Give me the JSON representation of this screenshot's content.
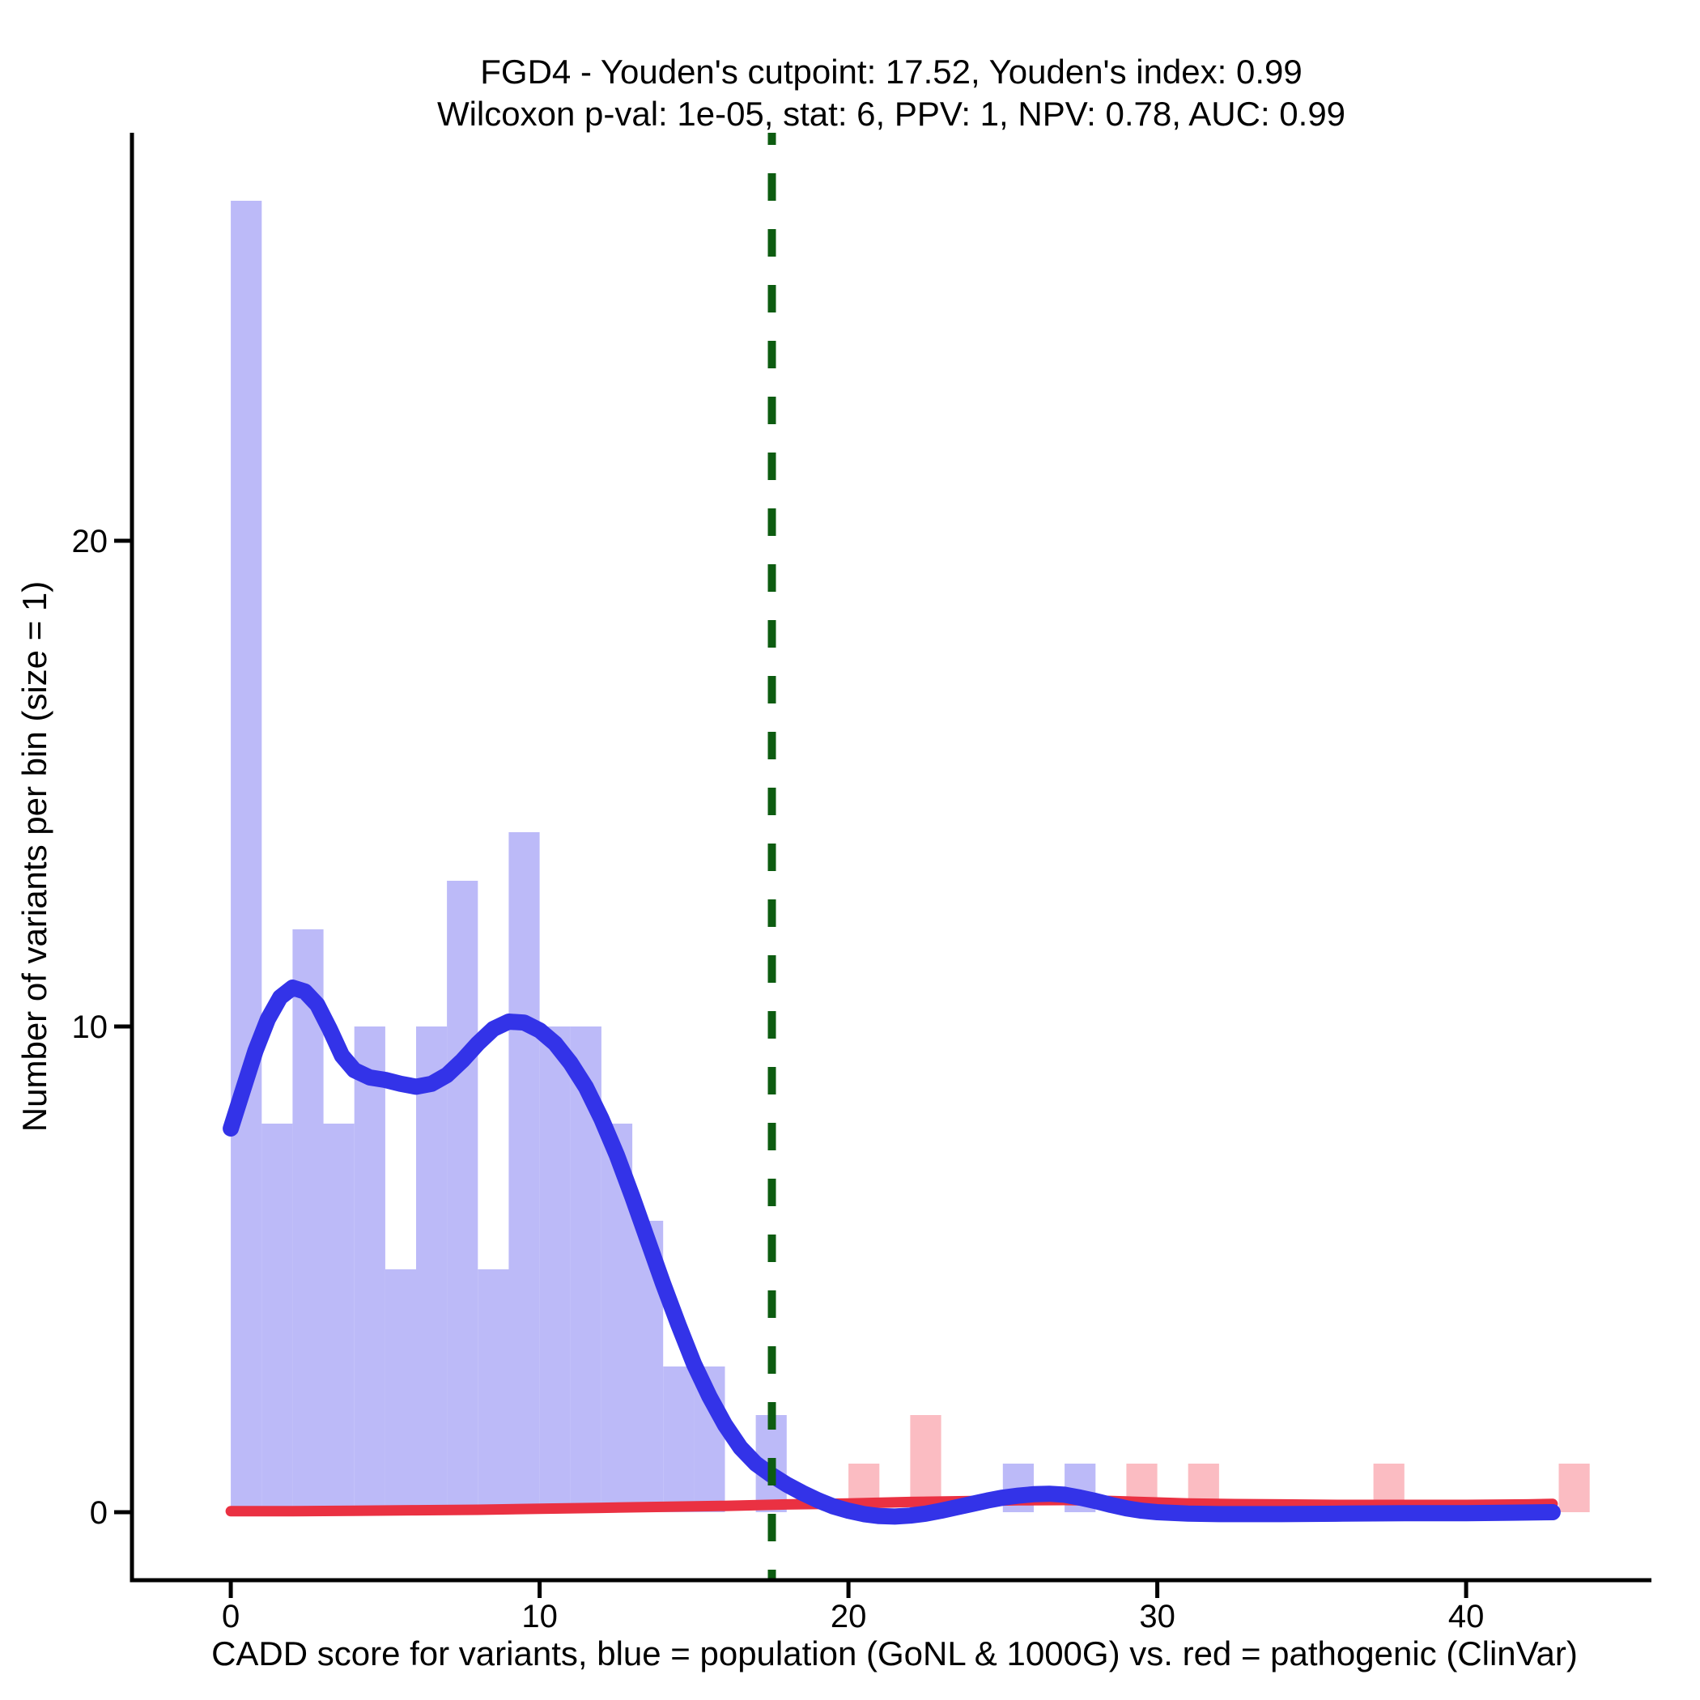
{
  "chart_data": {
    "type": "bar",
    "subtype": "histogram (bin size 1) with kernel density overlays and vertical cutpoint line",
    "title_line1": "FGD4 - Youden's cutpoint: 17.52, Youden's index: 0.99",
    "title_line2": "Wilcoxon p-val: 1e-05, stat: 6, PPV: 1, NPV: 0.78, AUC: 0.99",
    "stats": {
      "gene": "FGD4",
      "youdens_cutpoint": 17.52,
      "youdens_index": 0.99,
      "wilcoxon_p_val": "1e-05",
      "wilcoxon_stat": 6,
      "PPV": 1,
      "NPV": 0.78,
      "AUC": 0.99
    },
    "xlabel": "CADD score for variants, blue = population (GoNL & 1000G) vs. red = pathogenic (ClinVar)",
    "ylabel": "Number of variants per bin (size = 1)",
    "x_ticks": [
      0,
      10,
      20,
      30,
      40
    ],
    "y_ticks": [
      0,
      10,
      20
    ],
    "xlim": [
      -3.2,
      46.0
    ],
    "ylim": [
      -1.4,
      28.4
    ],
    "bin_size": 1,
    "cutpoint_x": 17.52,
    "grid": false,
    "legend_position": "none (color meaning given in x-axis label)",
    "series": [
      {
        "name": "population (GoNL & 1000G) histogram",
        "kind": "histogram",
        "color_key": "blue_bar",
        "bins": [
          [
            0,
            27
          ],
          [
            1,
            8
          ],
          [
            2,
            12
          ],
          [
            3,
            8
          ],
          [
            4,
            10
          ],
          [
            5,
            5
          ],
          [
            6,
            10
          ],
          [
            7,
            13
          ],
          [
            8,
            5
          ],
          [
            9,
            14
          ],
          [
            10,
            10
          ],
          [
            11,
            10
          ],
          [
            12,
            8
          ],
          [
            13,
            6
          ],
          [
            14,
            3
          ],
          [
            15,
            3
          ],
          [
            17,
            2
          ],
          [
            25,
            1
          ],
          [
            27,
            1
          ]
        ]
      },
      {
        "name": "pathogenic (ClinVar) histogram",
        "kind": "histogram",
        "color_key": "red_bar",
        "bins": [
          [
            20,
            1
          ],
          [
            22,
            2
          ],
          [
            29,
            1
          ],
          [
            31,
            1
          ],
          [
            37,
            1
          ],
          [
            43,
            1
          ]
        ]
      },
      {
        "name": "population (GoNL & 1000G) density",
        "kind": "density",
        "color_key": "blue_line",
        "stroke_width": 20,
        "points": [
          [
            0,
            7.9
          ],
          [
            0.4,
            8.7
          ],
          [
            0.8,
            9.5
          ],
          [
            1.2,
            10.15
          ],
          [
            1.6,
            10.6
          ],
          [
            2,
            10.8
          ],
          [
            2.4,
            10.72
          ],
          [
            2.8,
            10.45
          ],
          [
            3.2,
            9.95
          ],
          [
            3.6,
            9.4
          ],
          [
            4,
            9.1
          ],
          [
            4.5,
            8.95
          ],
          [
            5,
            8.9
          ],
          [
            5.5,
            8.82
          ],
          [
            6,
            8.76
          ],
          [
            6.5,
            8.82
          ],
          [
            7,
            9.0
          ],
          [
            7.5,
            9.3
          ],
          [
            8,
            9.65
          ],
          [
            8.5,
            9.95
          ],
          [
            9,
            10.1
          ],
          [
            9.5,
            10.08
          ],
          [
            10,
            9.92
          ],
          [
            10.5,
            9.65
          ],
          [
            11,
            9.25
          ],
          [
            11.5,
            8.75
          ],
          [
            12,
            8.1
          ],
          [
            12.5,
            7.35
          ],
          [
            13,
            6.5
          ],
          [
            13.5,
            5.6
          ],
          [
            14,
            4.7
          ],
          [
            14.5,
            3.85
          ],
          [
            15,
            3.05
          ],
          [
            15.5,
            2.38
          ],
          [
            16,
            1.8
          ],
          [
            16.5,
            1.33
          ],
          [
            17,
            1.0
          ],
          [
            17.5,
            0.77
          ],
          [
            18,
            0.57
          ],
          [
            18.5,
            0.4
          ],
          [
            19,
            0.25
          ],
          [
            19.5,
            0.12
          ],
          [
            20,
            0.03
          ],
          [
            20.5,
            -0.04
          ],
          [
            21,
            -0.08
          ],
          [
            21.5,
            -0.09
          ],
          [
            22,
            -0.07
          ],
          [
            22.5,
            -0.03
          ],
          [
            23,
            0.03
          ],
          [
            23.5,
            0.1
          ],
          [
            24,
            0.17
          ],
          [
            24.5,
            0.24
          ],
          [
            25,
            0.3
          ],
          [
            25.5,
            0.34
          ],
          [
            26,
            0.37
          ],
          [
            26.5,
            0.38
          ],
          [
            27,
            0.36
          ],
          [
            27.5,
            0.3
          ],
          [
            28,
            0.23
          ],
          [
            28.5,
            0.15
          ],
          [
            29,
            0.08
          ],
          [
            29.5,
            0.03
          ],
          [
            30,
            0
          ],
          [
            31,
            -0.03
          ],
          [
            32,
            -0.04
          ],
          [
            34,
            -0.04
          ],
          [
            36,
            -0.03
          ],
          [
            38,
            -0.02
          ],
          [
            40,
            -0.02
          ],
          [
            41.5,
            -0.01
          ],
          [
            42.8,
            0
          ]
        ]
      },
      {
        "name": "pathogenic (ClinVar) density",
        "kind": "density",
        "color_key": "red_line",
        "stroke_width": 13,
        "points": [
          [
            0,
            0.02
          ],
          [
            2,
            0.02
          ],
          [
            4,
            0.03
          ],
          [
            6,
            0.04
          ],
          [
            8,
            0.05
          ],
          [
            10,
            0.07
          ],
          [
            12,
            0.09
          ],
          [
            14,
            0.11
          ],
          [
            16,
            0.13
          ],
          [
            18,
            0.16
          ],
          [
            20,
            0.18
          ],
          [
            22,
            0.21
          ],
          [
            24,
            0.23
          ],
          [
            25.5,
            0.245
          ],
          [
            27,
            0.25
          ],
          [
            28,
            0.24
          ],
          [
            29,
            0.22
          ],
          [
            30,
            0.2
          ],
          [
            31,
            0.18
          ],
          [
            32,
            0.17
          ],
          [
            34,
            0.16
          ],
          [
            36,
            0.15
          ],
          [
            38,
            0.15
          ],
          [
            40,
            0.15
          ],
          [
            42,
            0.16
          ],
          [
            42.8,
            0.17
          ]
        ]
      }
    ],
    "colors": {
      "blue_bar": "#bcbaf8",
      "red_bar": "#fbbcc2",
      "blue_line": "#3333e8",
      "red_line": "#ea3142",
      "cutpoint_line": "#0d5c11",
      "axis": "#000000",
      "background": "#ffffff"
    }
  }
}
